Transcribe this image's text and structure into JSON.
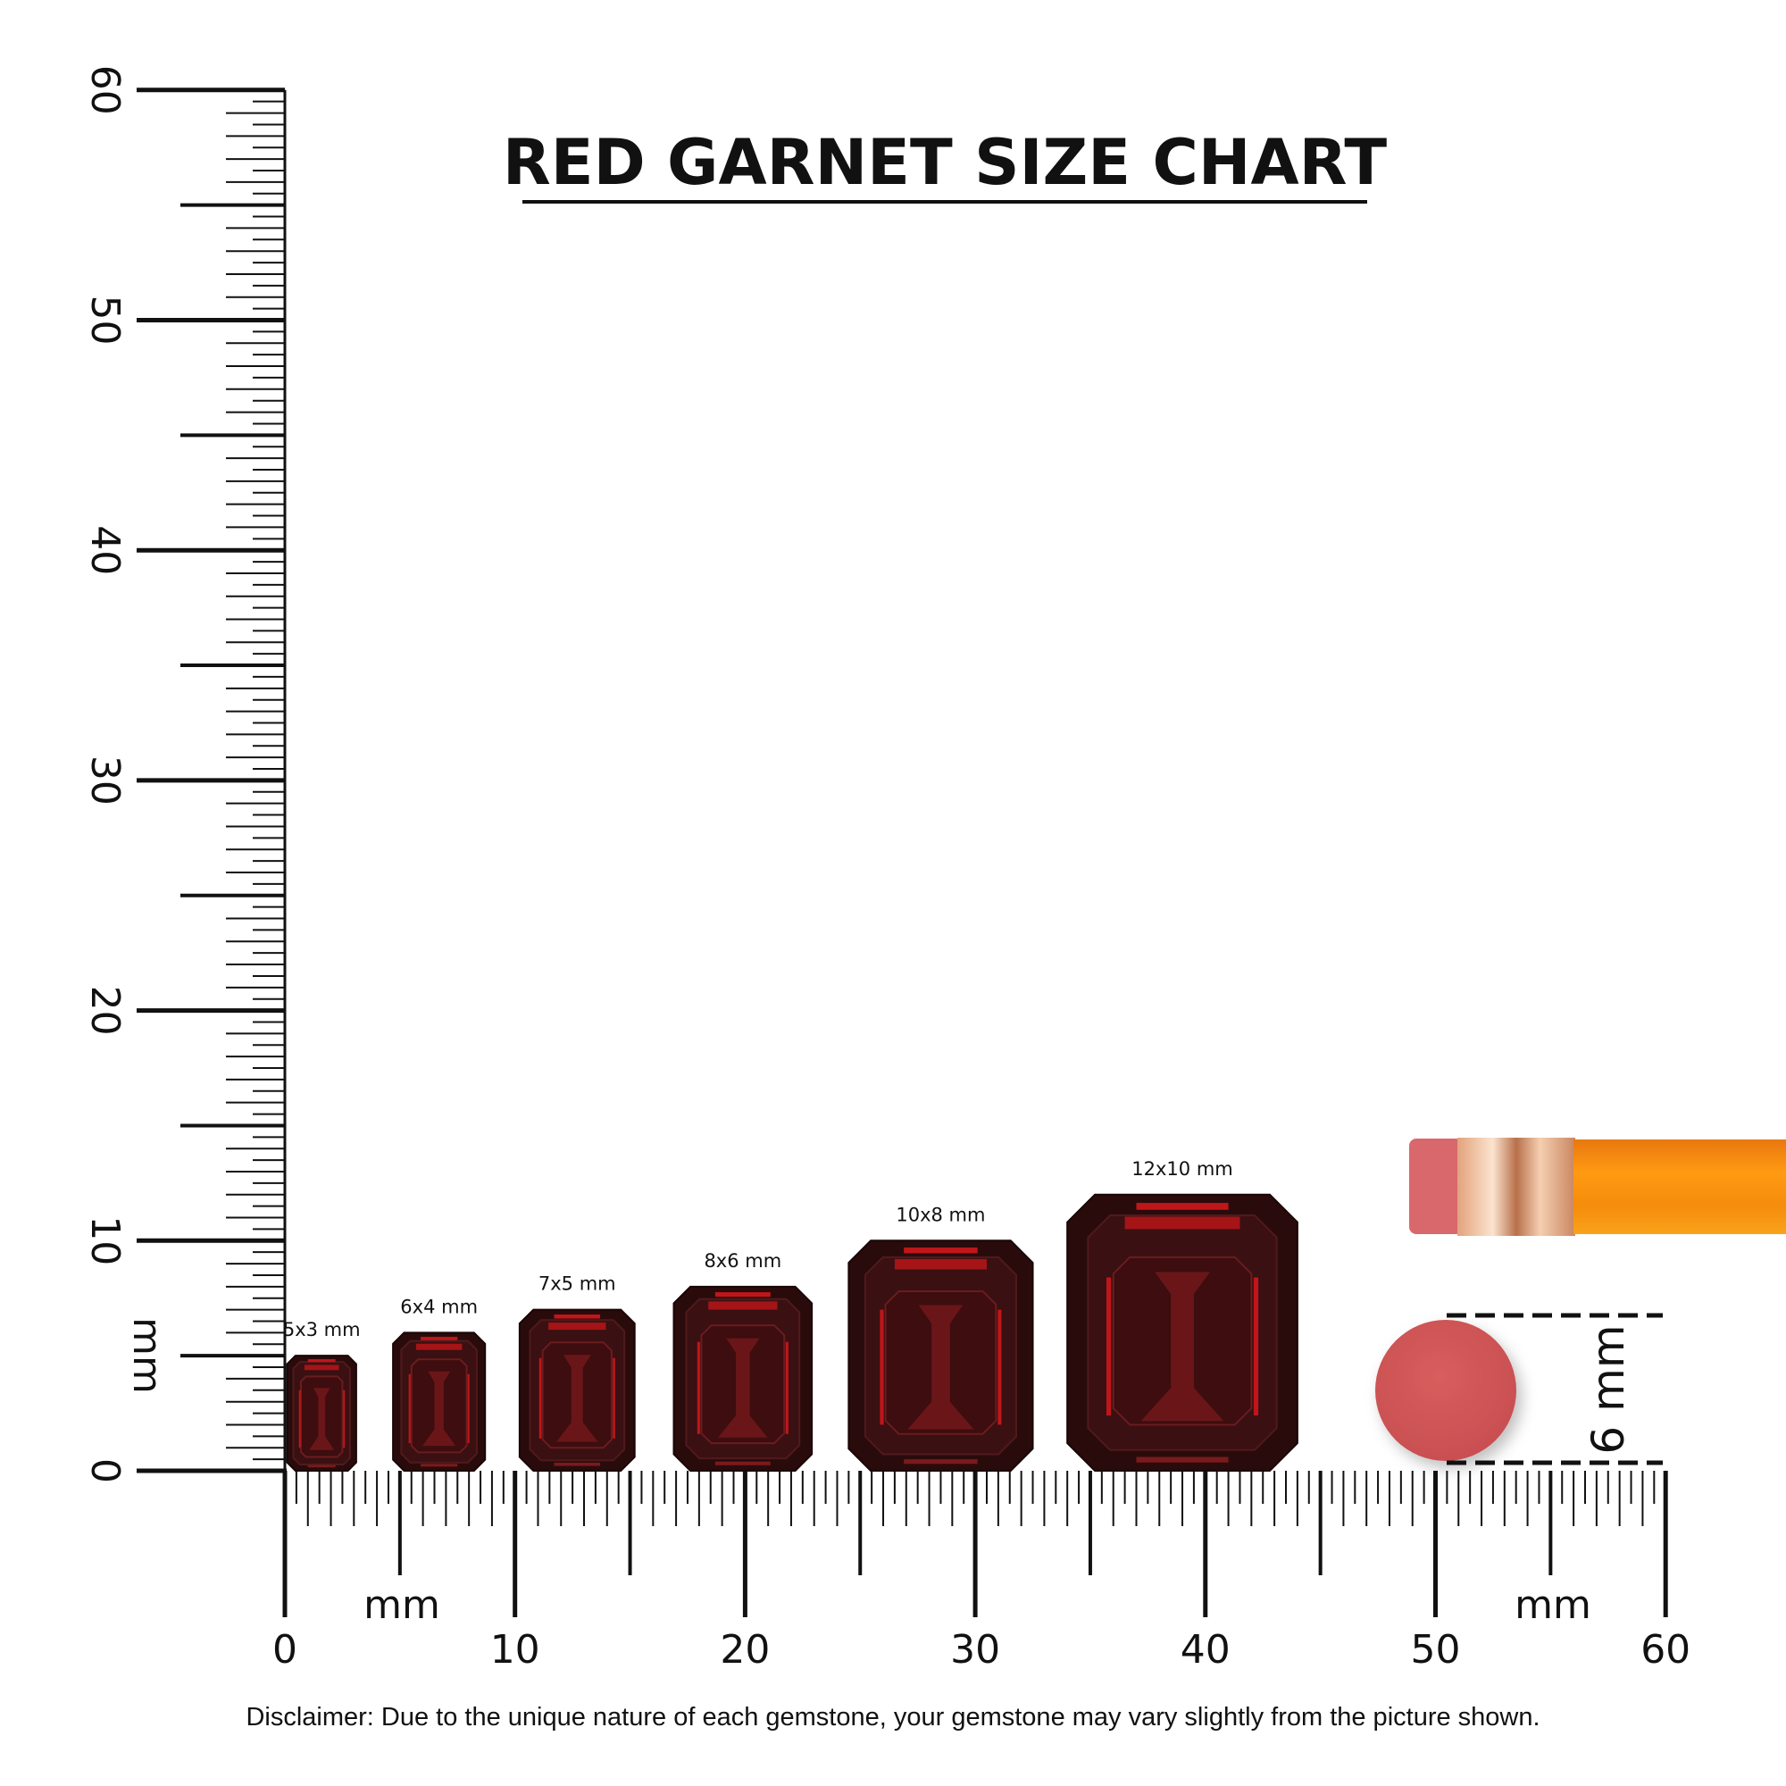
{
  "chart_data": {
    "type": "size-comparison",
    "title": "RED GARNET SIZE CHART",
    "unit_label": "mm",
    "x_axis": {
      "range": [
        0,
        60
      ],
      "tick_labels": [
        "0",
        "10",
        "20",
        "30",
        "40",
        "50",
        "60"
      ]
    },
    "y_axis": {
      "range": [
        0,
        60
      ],
      "tick_labels": [
        "0",
        "10",
        "20",
        "30",
        "40",
        "50",
        "60"
      ]
    },
    "gems": [
      {
        "label": "5x3 mm",
        "length_mm": 5,
        "width_mm": 3
      },
      {
        "label": "6x4 mm",
        "length_mm": 6,
        "width_mm": 4
      },
      {
        "label": "7x5 mm",
        "length_mm": 7,
        "width_mm": 5
      },
      {
        "label": "8x6 mm",
        "length_mm": 8,
        "width_mm": 6
      },
      {
        "label": "10x8 mm",
        "length_mm": 10,
        "width_mm": 8
      },
      {
        "label": "12x10 mm",
        "length_mm": 12,
        "width_mm": 10
      }
    ],
    "reference": {
      "object": "pencil eraser",
      "label": "6 mm",
      "diameter_mm": 6
    },
    "colors": {
      "gem": "#2a0b0c",
      "gem_facet": "#c0161a",
      "eraser": "#d15a5a",
      "pencil": "#f7930e",
      "ferrule": "#e8b48f"
    }
  },
  "disclaimer": "Disclaimer: Due to the unique nature of each gemstone, your gemstone may vary slightly from the picture shown."
}
